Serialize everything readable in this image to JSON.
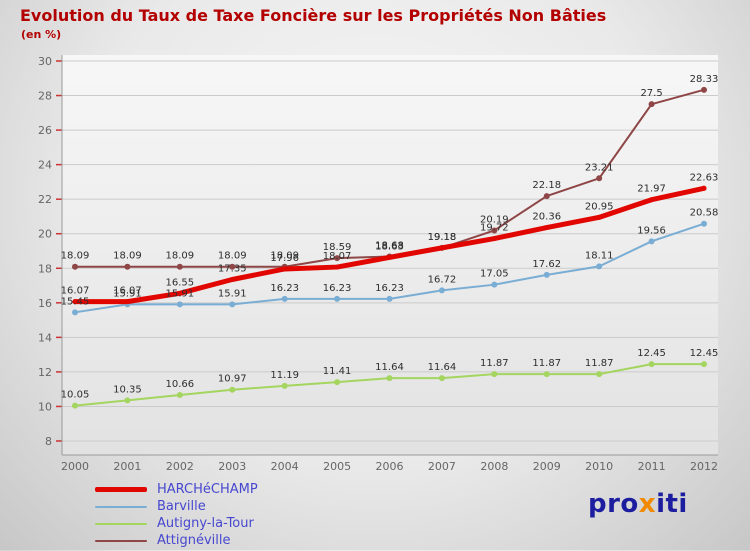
{
  "title": "Evolution du Taux de Taxe Foncière sur les Propriétés Non Bâties",
  "subtitle": "(en %)",
  "chart_data": {
    "type": "line",
    "x": [
      2000,
      2001,
      2002,
      2003,
      2004,
      2005,
      2006,
      2007,
      2008,
      2009,
      2010,
      2011,
      2012
    ],
    "ylim": [
      8,
      30
    ],
    "ytick_step": 2,
    "grid": true,
    "legend_position": "bottom-left",
    "series": [
      {
        "name": "HARCHéCHAMP",
        "color": "#e10600",
        "width": 5,
        "values": [
          16.07,
          16.07,
          16.55,
          17.35,
          17.96,
          18.07,
          18.63,
          19.18,
          19.72,
          20.36,
          20.95,
          21.97,
          22.63
        ]
      },
      {
        "name": "Barville",
        "color": "#7aadd4",
        "width": 2,
        "values": [
          15.45,
          15.91,
          15.91,
          15.91,
          16.23,
          16.23,
          16.23,
          16.72,
          17.05,
          17.62,
          18.11,
          19.56,
          20.58
        ]
      },
      {
        "name": "Autigny-la-Tour",
        "color": "#a3d55f",
        "width": 2,
        "values": [
          10.05,
          10.35,
          10.66,
          10.97,
          11.19,
          11.41,
          11.64,
          11.64,
          11.87,
          11.87,
          11.87,
          12.45,
          12.45
        ]
      },
      {
        "name": "Attignéville",
        "color": "#8e4646",
        "width": 2,
        "values": [
          18.09,
          18.09,
          18.09,
          18.09,
          18.09,
          18.59,
          18.68,
          19.18,
          20.19,
          22.18,
          23.21,
          27.5,
          28.33
        ]
      }
    ]
  },
  "logo": {
    "parts": [
      {
        "text": "pro",
        "color": "#1d1d9f"
      },
      {
        "text": "x",
        "color": "#f18a00"
      },
      {
        "text": "iti",
        "color": "#1d1d9f"
      }
    ]
  }
}
